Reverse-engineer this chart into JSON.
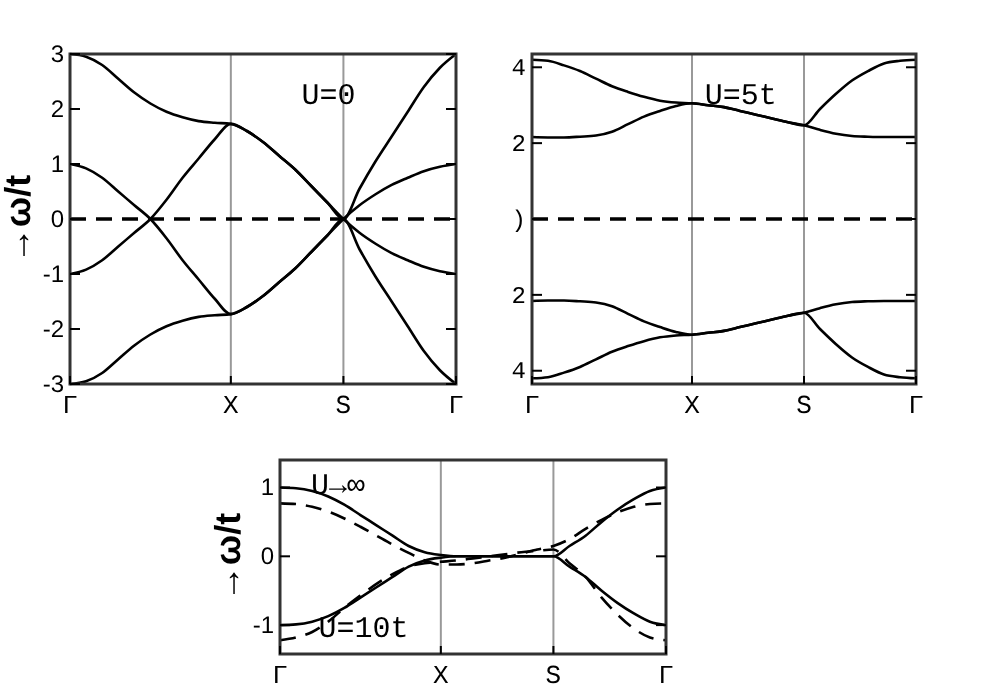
{
  "chart_data": [
    {
      "type": "line",
      "ylabel": "→ω/t",
      "annotations": [
        "U=0"
      ],
      "categories": [
        "Γ",
        null,
        null,
        null,
        null,
        null,
        null,
        null,
        null,
        null,
        "X",
        null,
        null,
        null,
        null,
        null,
        null,
        "S",
        null,
        null,
        null,
        null,
        null,
        null,
        "Γ"
      ],
      "ylim": [
        -3,
        3
      ],
      "yticks": [
        3,
        2,
        1,
        0,
        -1,
        -2,
        -3
      ],
      "grid": "x",
      "ref_lines": [
        {
          "axis": "y",
          "value": 0,
          "line_style": "dashed",
          "color": "#000000"
        }
      ],
      "marker": "none",
      "series": [
        {
          "color": "#000000",
          "values": [
            3,
            2.95,
            2.8,
            2.55,
            2.3,
            2.1,
            1.95,
            1.85,
            1.78,
            1.75,
            1.73,
            1.6,
            1.4,
            1.15,
            0.9,
            0.6,
            0.3,
            0,
            0.55,
            1.05,
            1.5,
            1.95,
            2.4,
            2.75,
            3
          ]
        },
        {
          "color": "#000000",
          "values": [
            1,
            0.92,
            0.75,
            0.5,
            0.25,
            0,
            -0.35,
            -0.75,
            -1.1,
            -1.45,
            -1.73,
            -1.6,
            -1.4,
            -1.15,
            -0.9,
            -0.6,
            -0.3,
            0,
            0.25,
            0.45,
            0.62,
            0.75,
            0.87,
            0.95,
            1
          ]
        },
        {
          "color": "#000000",
          "values": [
            -1,
            -0.92,
            -0.75,
            -0.5,
            -0.25,
            0,
            0.35,
            0.75,
            1.1,
            1.45,
            1.73,
            1.6,
            1.4,
            1.15,
            0.9,
            0.6,
            0.3,
            0,
            -0.25,
            -0.45,
            -0.62,
            -0.75,
            -0.87,
            -0.95,
            -1
          ]
        },
        {
          "color": "#000000",
          "values": [
            -3,
            -2.95,
            -2.8,
            -2.55,
            -2.3,
            -2.1,
            -1.95,
            -1.85,
            -1.78,
            -1.75,
            -1.73,
            -1.6,
            -1.4,
            -1.15,
            -0.9,
            -0.6,
            -0.3,
            0,
            -0.55,
            -1.05,
            -1.5,
            -1.95,
            -2.4,
            -2.75,
            -3
          ]
        }
      ]
    },
    {
      "type": "line",
      "annotations": [
        "U=5t"
      ],
      "categories": [
        "Γ",
        null,
        null,
        null,
        null,
        null,
        null,
        null,
        null,
        null,
        "X",
        null,
        null,
        null,
        null,
        null,
        null,
        "S",
        null,
        null,
        null,
        null,
        null,
        null,
        "Γ"
      ],
      "ylim": [
        -4.35,
        4.35
      ],
      "yticks": [
        {
          "value": 4,
          "label": "4"
        },
        {
          "value": 2,
          "label": "2"
        },
        {
          "value": 0,
          "label": ")"
        },
        {
          "value": -2,
          "label": "2"
        },
        {
          "value": -4,
          "label": "4"
        }
      ],
      "grid": "x",
      "ref_lines": [
        {
          "axis": "y",
          "value": 0,
          "line_style": "dashed",
          "color": "#000000"
        }
      ],
      "marker": "none",
      "series": [
        {
          "color": "#000000",
          "values": [
            4.2,
            4.17,
            4.05,
            3.9,
            3.7,
            3.5,
            3.35,
            3.22,
            3.12,
            3.07,
            3.05,
            3.0,
            2.95,
            2.85,
            2.75,
            2.65,
            2.55,
            2.47,
            2.9,
            3.3,
            3.65,
            3.9,
            4.1,
            4.17,
            4.2
          ]
        },
        {
          "color": "#000000",
          "values": [
            2.16,
            2.15,
            2.15,
            2.17,
            2.2,
            2.3,
            2.5,
            2.7,
            2.85,
            2.98,
            3.05,
            3.0,
            2.95,
            2.85,
            2.75,
            2.65,
            2.55,
            2.47,
            2.35,
            2.25,
            2.19,
            2.17,
            2.16,
            2.16,
            2.16
          ]
        },
        {
          "color": "#000000",
          "values": [
            -2.16,
            -2.15,
            -2.15,
            -2.17,
            -2.2,
            -2.3,
            -2.5,
            -2.7,
            -2.85,
            -2.98,
            -3.05,
            -3.0,
            -2.95,
            -2.85,
            -2.75,
            -2.65,
            -2.55,
            -2.47,
            -2.35,
            -2.25,
            -2.19,
            -2.17,
            -2.16,
            -2.16,
            -2.16
          ]
        },
        {
          "color": "#000000",
          "values": [
            -4.2,
            -4.17,
            -4.05,
            -3.9,
            -3.7,
            -3.5,
            -3.35,
            -3.22,
            -3.12,
            -3.07,
            -3.05,
            -3.0,
            -2.95,
            -2.85,
            -2.75,
            -2.65,
            -2.55,
            -2.47,
            -2.9,
            -3.3,
            -3.65,
            -3.9,
            -4.1,
            -4.17,
            -4.2
          ]
        }
      ]
    },
    {
      "type": "line",
      "ylabel": "→ω/t",
      "annotations": [
        "U→∞",
        "U=10t"
      ],
      "categories": [
        "Γ",
        null,
        null,
        null,
        null,
        null,
        null,
        null,
        null,
        null,
        "X",
        null,
        null,
        null,
        null,
        null,
        null,
        "S",
        null,
        null,
        null,
        null,
        null,
        null,
        "Γ"
      ],
      "ylim": [
        -1.42,
        1.4
      ],
      "yticks": [
        1,
        0,
        -1
      ],
      "grid": "x",
      "marker": "none",
      "series": [
        {
          "color": "#000000",
          "line_style": "solid",
          "values": [
            1,
            0.99,
            0.95,
            0.87,
            0.75,
            0.6,
            0.45,
            0.3,
            0.15,
            0.06,
            0.02,
            0,
            0,
            0,
            0,
            0,
            0,
            0,
            0.15,
            0.3,
            0.5,
            0.68,
            0.83,
            0.95,
            1
          ]
        },
        {
          "color": "#000000",
          "line_style": "solid",
          "values": [
            -1,
            -0.99,
            -0.95,
            -0.87,
            -0.75,
            -0.6,
            -0.45,
            -0.3,
            -0.15,
            -0.06,
            -0.02,
            0,
            0,
            0,
            0,
            0,
            0,
            0,
            -0.15,
            -0.3,
            -0.5,
            -0.68,
            -0.83,
            -0.95,
            -1
          ]
        },
        {
          "color": "#000000",
          "line_style": "dashed",
          "values": [
            0.77,
            0.76,
            0.72,
            0.65,
            0.55,
            0.43,
            0.3,
            0.17,
            0.05,
            -0.06,
            -0.12,
            -0.12,
            -0.1,
            -0.06,
            -0.02,
            0.04,
            0.1,
            0.15,
            0.25,
            0.4,
            0.53,
            0.64,
            0.72,
            0.76,
            0.77
          ]
        },
        {
          "color": "#000000",
          "line_style": "dashed",
          "values": [
            -1.22,
            -1.18,
            -1.1,
            -0.95,
            -0.75,
            -0.57,
            -0.4,
            -0.26,
            -0.15,
            -0.1,
            -0.08,
            -0.06,
            -0.03,
            0,
            0.03,
            0.06,
            0.08,
            0.1,
            -0.1,
            -0.3,
            -0.6,
            -0.85,
            -1.05,
            -1.18,
            -1.22
          ]
        }
      ]
    }
  ]
}
